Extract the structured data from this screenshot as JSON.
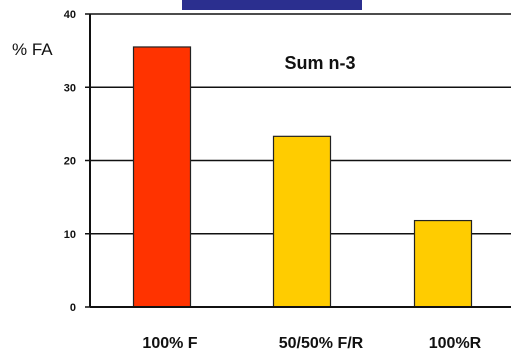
{
  "colors": {
    "header_bar": "#2b2f8f",
    "axis": "#111111",
    "grid": "#111111",
    "bar_edge": "#222222"
  },
  "chart_data": {
    "type": "bar",
    "title": "",
    "ylabel": "% FA",
    "xlabel": "",
    "annotation": "Sum n-3",
    "categories": [
      "100% F",
      "50/50% F/R",
      "100%R"
    ],
    "values": [
      35.5,
      23.3,
      11.8
    ],
    "bar_colors": [
      "#ff3300",
      "#ffcc00",
      "#ffcc00"
    ],
    "ylim": [
      0,
      40
    ],
    "yticks": [
      0,
      10,
      20,
      30,
      40
    ],
    "grid": true,
    "legend": "none"
  }
}
